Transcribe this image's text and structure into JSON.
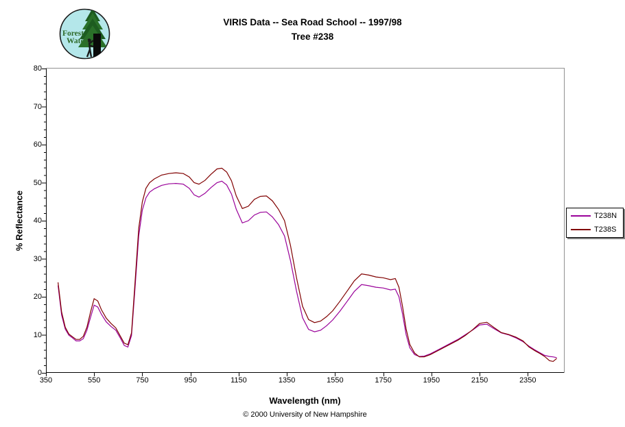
{
  "logo": {
    "line1": "Forest",
    "line2": "Watch",
    "bg_color": "#b4e7ea",
    "tree_dark": "#1d5c20",
    "tree_mid": "#2a7029",
    "text_color": "#2f6b2a"
  },
  "title": {
    "line1": "VIRIS Data -- Sea Road School -- 1997/98",
    "line2": "Tree #238"
  },
  "footer": {
    "copyright": "© 2000 University of New Hampshire"
  },
  "legend": {
    "items": [
      {
        "label": "T238N",
        "color": "#990099"
      },
      {
        "label": "T238S",
        "color": "#800000"
      }
    ]
  },
  "chart_data": {
    "type": "line",
    "title": "VIRIS Data -- Sea Road School -- 1997/98 / Tree #238",
    "xlabel": "Wavelength (nm)",
    "ylabel": "% Reflectance",
    "xlim": [
      350,
      2500
    ],
    "ylim": [
      0,
      80
    ],
    "x_ticks": [
      350,
      550,
      750,
      950,
      1150,
      1350,
      1550,
      1750,
      1950,
      2150,
      2350
    ],
    "y_ticks": [
      0,
      10,
      20,
      30,
      40,
      50,
      60,
      70,
      80
    ],
    "y_minor_step": 2,
    "grid": false,
    "legend_position": "right",
    "axis_color": "#000000",
    "plot_border_color": "#909090",
    "x": [
      400,
      415,
      430,
      445,
      460,
      475,
      490,
      505,
      520,
      535,
      550,
      565,
      580,
      600,
      620,
      640,
      660,
      675,
      690,
      705,
      720,
      735,
      750,
      765,
      780,
      800,
      830,
      860,
      890,
      920,
      945,
      965,
      985,
      1010,
      1035,
      1060,
      1080,
      1100,
      1120,
      1140,
      1165,
      1190,
      1215,
      1240,
      1265,
      1290,
      1315,
      1340,
      1365,
      1390,
      1415,
      1440,
      1465,
      1490,
      1515,
      1540,
      1570,
      1600,
      1630,
      1660,
      1690,
      1720,
      1750,
      1780,
      1800,
      1815,
      1830,
      1845,
      1860,
      1880,
      1900,
      1920,
      1945,
      1970,
      2000,
      2030,
      2060,
      2090,
      2120,
      2150,
      2180,
      2210,
      2240,
      2270,
      2300,
      2330,
      2355,
      2380,
      2400,
      2420,
      2440,
      2455,
      2470
    ],
    "series": [
      {
        "name": "T238N",
        "color": "#990099",
        "values": [
          23.0,
          15.2,
          11.5,
          9.9,
          9.2,
          8.4,
          8.4,
          9.0,
          11.2,
          14.6,
          17.8,
          17.3,
          15.4,
          13.4,
          12.2,
          11.2,
          9.0,
          7.2,
          6.8,
          9.8,
          22.5,
          36.0,
          42.8,
          46.0,
          47.5,
          48.4,
          49.3,
          49.7,
          49.8,
          49.6,
          48.5,
          46.8,
          46.2,
          47.2,
          48.7,
          50.0,
          50.4,
          49.4,
          47.0,
          43.0,
          39.4,
          40.0,
          41.5,
          42.2,
          42.3,
          41.0,
          39.0,
          36.0,
          29.5,
          21.5,
          14.5,
          11.4,
          10.8,
          11.2,
          12.4,
          13.9,
          16.2,
          18.8,
          21.4,
          23.2,
          22.9,
          22.5,
          22.3,
          21.8,
          22.0,
          20.0,
          15.5,
          10.0,
          6.6,
          4.8,
          4.3,
          4.4,
          5.0,
          5.8,
          6.8,
          7.8,
          8.8,
          10.0,
          11.2,
          12.6,
          12.8,
          11.6,
          10.5,
          10.0,
          9.2,
          8.2,
          7.0,
          6.0,
          5.3,
          4.6,
          4.3,
          4.2,
          4.0
        ]
      },
      {
        "name": "T238S",
        "color": "#800000",
        "values": [
          23.8,
          16.0,
          12.0,
          10.2,
          9.5,
          8.8,
          8.8,
          9.6,
          12.0,
          16.0,
          19.5,
          18.9,
          16.6,
          14.4,
          13.0,
          11.8,
          9.5,
          7.8,
          7.4,
          10.5,
          24.0,
          38.0,
          45.0,
          48.5,
          50.0,
          51.0,
          52.0,
          52.4,
          52.6,
          52.4,
          51.5,
          50.0,
          49.6,
          50.6,
          52.2,
          53.6,
          53.8,
          52.8,
          50.5,
          46.5,
          43.2,
          43.8,
          45.6,
          46.4,
          46.5,
          45.2,
          43.0,
          40.0,
          33.5,
          25.0,
          17.5,
          14.0,
          13.2,
          13.6,
          14.8,
          16.3,
          18.8,
          21.5,
          24.2,
          26.0,
          25.7,
          25.2,
          25.0,
          24.5,
          24.8,
          22.5,
          17.5,
          11.5,
          7.5,
          5.2,
          4.2,
          4.2,
          4.8,
          5.6,
          6.6,
          7.6,
          8.6,
          9.8,
          11.3,
          13.0,
          13.3,
          11.9,
          10.6,
          10.1,
          9.4,
          8.4,
          6.8,
          5.8,
          5.1,
          4.3,
          3.2,
          3.0,
          3.8
        ]
      }
    ]
  }
}
